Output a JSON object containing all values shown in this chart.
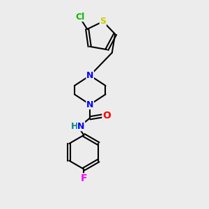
{
  "background_color": "#ececec",
  "bond_color": "black",
  "bond_width": 1.5,
  "atom_colors": {
    "N": "#0000FF",
    "O": "#FF0000",
    "S": "#CCCC00",
    "Cl": "#00BB00",
    "F": "#FF00FF",
    "NH": "#008888",
    "C": "black"
  },
  "font_size": 9,
  "figsize": [
    3.0,
    3.0
  ],
  "dpi": 100,
  "xlim": [
    0,
    10
  ],
  "ylim": [
    0,
    10
  ]
}
